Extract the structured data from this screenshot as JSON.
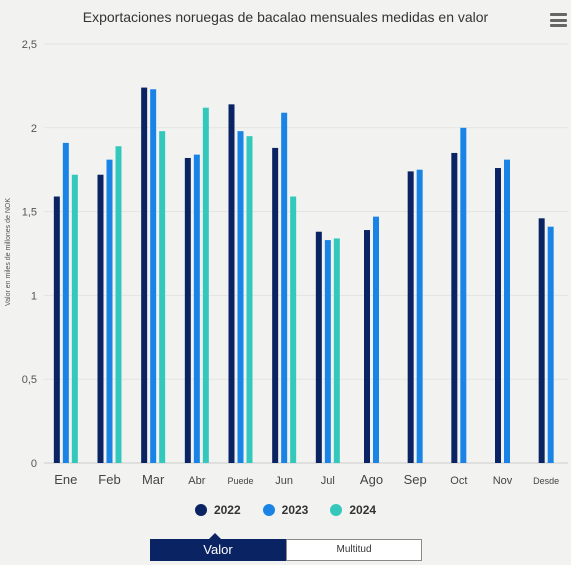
{
  "chart_data": {
    "type": "bar",
    "title": "Exportaciones noruegas de bacalao mensuales medidas en valor",
    "ylabel": "Valor en miles de millones de NOK",
    "xlabel": "",
    "ylim": [
      0,
      2.5
    ],
    "yticks": [
      "0",
      "0,5",
      "1",
      "1,5",
      "2",
      "2,5"
    ],
    "grid": true,
    "legend_position": "bottom",
    "categories": [
      "Ene",
      "Feb",
      "Mar",
      "Abr",
      "Puede",
      "Jun",
      "Jul",
      "Ago",
      "Sep",
      "Oct",
      "Nov",
      "Desde"
    ],
    "series": [
      {
        "name": "2022",
        "color": "#0a2363",
        "values": [
          1.59,
          1.72,
          2.24,
          1.82,
          2.14,
          1.88,
          1.38,
          1.39,
          1.74,
          1.85,
          1.76,
          1.46
        ]
      },
      {
        "name": "2023",
        "color": "#1a84e6",
        "values": [
          1.91,
          1.81,
          2.23,
          1.84,
          1.98,
          2.09,
          1.33,
          1.47,
          1.75,
          2.0,
          1.81,
          1.41
        ]
      },
      {
        "name": "2024",
        "color": "#34c8bd",
        "values": [
          1.72,
          1.89,
          1.98,
          2.12,
          1.95,
          1.59,
          1.34,
          null,
          null,
          null,
          null,
          null
        ]
      }
    ]
  },
  "toggle": {
    "active_label": "Valor",
    "inactive_label": "Multitud"
  },
  "icons": {
    "menu": "hamburger-menu-icon"
  }
}
